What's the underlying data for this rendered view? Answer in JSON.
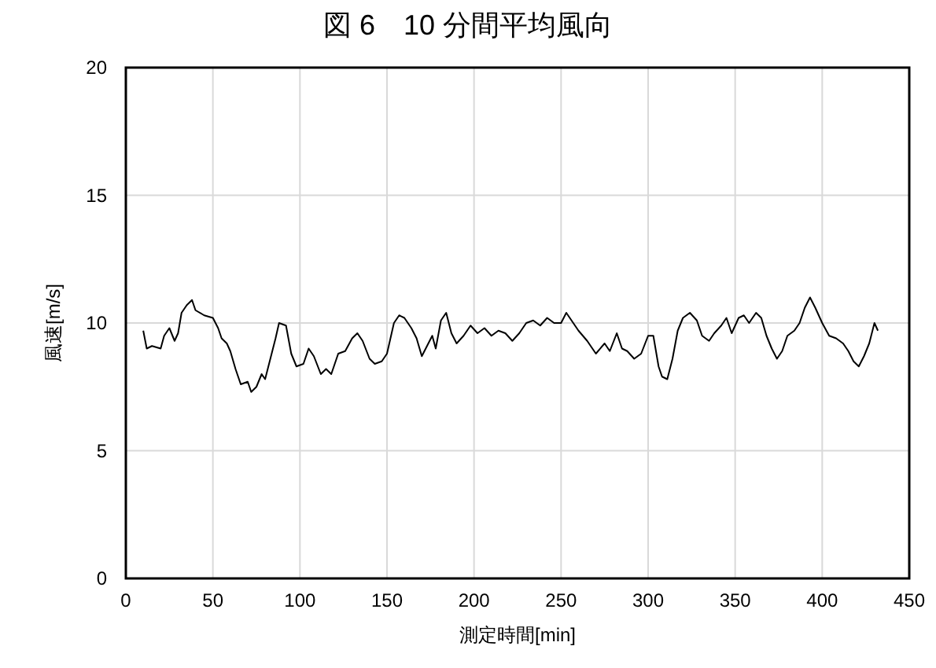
{
  "chart_data": {
    "type": "line",
    "title": "図 6　10 分間平均風向",
    "xlabel": "測定時間[min]",
    "ylabel": "風速[m/s]",
    "x": [
      10,
      12,
      15,
      20,
      22,
      25,
      28,
      30,
      32,
      35,
      38,
      40,
      45,
      50,
      53,
      55,
      58,
      60,
      63,
      66,
      70,
      72,
      75,
      78,
      80,
      83,
      86,
      88,
      92,
      95,
      98,
      102,
      105,
      108,
      112,
      115,
      118,
      122,
      126,
      130,
      133,
      136,
      140,
      143,
      147,
      150,
      154,
      157,
      160,
      164,
      167,
      170,
      173,
      176,
      178,
      181,
      184,
      187,
      190,
      194,
      198,
      202,
      206,
      210,
      214,
      218,
      222,
      226,
      230,
      234,
      238,
      242,
      246,
      250,
      253,
      256,
      260,
      265,
      270,
      275,
      278,
      282,
      285,
      288,
      292,
      296,
      300,
      303,
      306,
      308,
      311,
      314,
      317,
      320,
      324,
      328,
      331,
      335,
      338,
      342,
      345,
      348,
      352,
      355,
      358,
      362,
      365,
      368,
      371,
      374,
      377,
      380,
      384,
      387,
      390,
      393,
      396,
      400,
      404,
      408,
      412,
      415,
      418,
      421,
      424,
      427,
      430,
      432
    ],
    "series": [
      {
        "color": "#000000",
        "values": [
          9.7,
          9.0,
          9.1,
          9.0,
          9.5,
          9.8,
          9.3,
          9.6,
          10.4,
          10.7,
          10.9,
          10.5,
          10.3,
          10.2,
          9.8,
          9.4,
          9.2,
          8.9,
          8.2,
          7.6,
          7.7,
          7.3,
          7.5,
          8.0,
          7.8,
          8.6,
          9.4,
          10.0,
          9.9,
          8.8,
          8.3,
          8.4,
          9.0,
          8.7,
          8.0,
          8.2,
          8.0,
          8.8,
          8.9,
          9.4,
          9.6,
          9.3,
          8.6,
          8.4,
          8.5,
          8.8,
          10.0,
          10.3,
          10.2,
          9.8,
          9.4,
          8.7,
          9.1,
          9.5,
          9.0,
          10.1,
          10.4,
          9.6,
          9.2,
          9.5,
          9.9,
          9.6,
          9.8,
          9.5,
          9.7,
          9.6,
          9.3,
          9.6,
          10.0,
          10.1,
          9.9,
          10.2,
          10.0,
          10.0,
          10.4,
          10.1,
          9.7,
          9.3,
          8.8,
          9.2,
          8.9,
          9.6,
          9.0,
          8.9,
          8.6,
          8.8,
          9.5,
          9.5,
          8.3,
          7.9,
          7.8,
          8.6,
          9.7,
          10.2,
          10.4,
          10.1,
          9.5,
          9.3,
          9.6,
          9.9,
          10.2,
          9.6,
          10.2,
          10.3,
          10.0,
          10.4,
          10.2,
          9.5,
          9.0,
          8.6,
          8.9,
          9.5,
          9.7,
          10.0,
          10.6,
          11.0,
          10.6,
          10.0,
          9.5,
          9.4,
          9.2,
          8.9,
          8.5,
          8.3,
          8.7,
          9.2,
          10.0,
          9.7
        ]
      }
    ],
    "xlim": [
      0,
      450
    ],
    "xticks": [
      0,
      50,
      100,
      150,
      200,
      250,
      300,
      350,
      400,
      450
    ],
    "ylim": [
      0,
      20
    ],
    "yticks": [
      0,
      5,
      10,
      15,
      20
    ],
    "grid": true,
    "marker": "none",
    "line_style": "solid"
  }
}
